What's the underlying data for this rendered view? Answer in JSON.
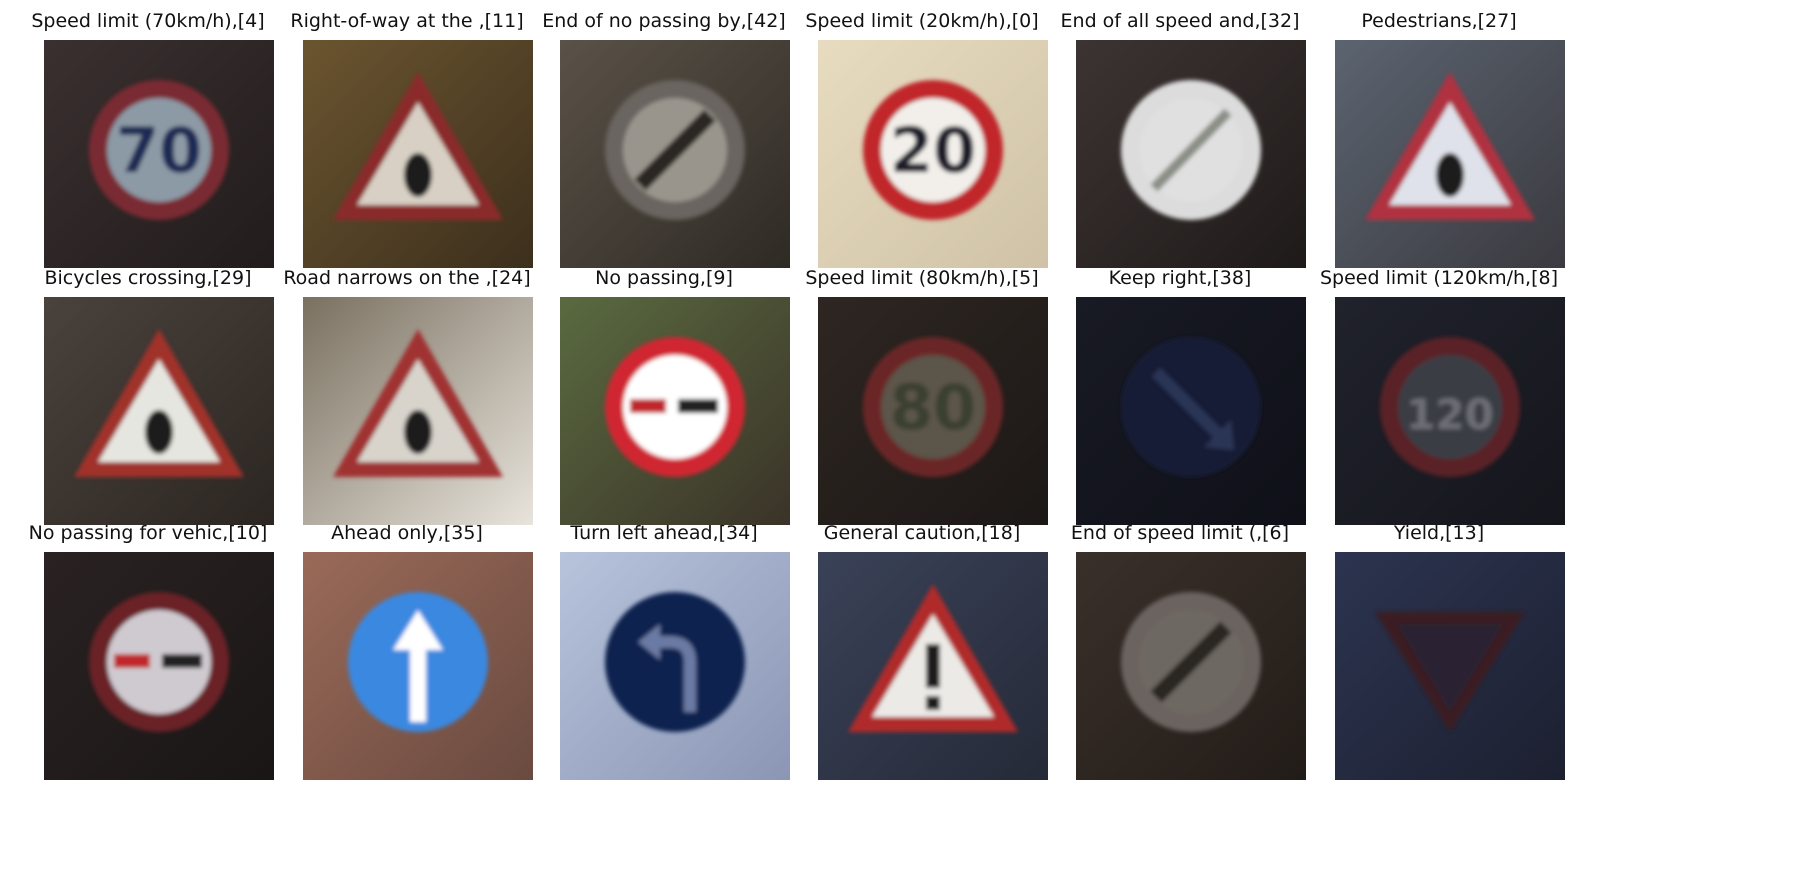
{
  "figure": {
    "cells": [
      {
        "title": "Speed limit (70km/h),[4]",
        "icon": "speed-limit-70-sign",
        "bg": [
          "#3a3030",
          "#221c1c"
        ],
        "sign": {
          "kind": "circle",
          "ring": "#7a2a30",
          "fill": "#8c9aa6",
          "sym": "70",
          "symColor": "#1f2a55"
        }
      },
      {
        "title": "Right-of-way at the ,[11]",
        "icon": "right-of-way-sign",
        "bg": [
          "#6b5530",
          "#3c2f1c"
        ],
        "sign": {
          "kind": "triangle",
          "ring": "#8a2a2a",
          "fill": "#d8d0c4",
          "sym": "dot"
        }
      },
      {
        "title": "End of no passing by,[42]",
        "icon": "end-of-no-passing-sign",
        "bg": [
          "#5a5248",
          "#2e2a24"
        ],
        "sign": {
          "kind": "circle",
          "ring": "#6a6560",
          "fill": "#9a958c",
          "sym": "slash-dark"
        }
      },
      {
        "title": "Speed limit (20km/h),[0]",
        "icon": "speed-limit-20-sign",
        "bg": [
          "#e8dcc0",
          "#cfc2a6"
        ],
        "sign": {
          "kind": "circle",
          "ring": "#c0282c",
          "fill": "#f2efea",
          "sym": "20",
          "symColor": "#1a1a2a"
        }
      },
      {
        "title": "End of all speed and,[32]",
        "icon": "end-of-all-limits-sign",
        "bg": [
          "#3c3432",
          "#1f1a1a"
        ],
        "sign": {
          "kind": "circle",
          "ring": "#dcdcdc",
          "fill": "#e0e0e0",
          "sym": "slash-gray"
        }
      },
      {
        "title": "Pedestrians,[27]",
        "icon": "pedestrians-sign",
        "bg": [
          "#5b6470",
          "#3b3a40"
        ],
        "sign": {
          "kind": "triangle",
          "ring": "#b03040",
          "fill": "#dfe2ea",
          "sym": "dot"
        }
      },
      {
        "title": "Bicycles crossing,[29]",
        "icon": "bicycles-crossing-sign",
        "bg": [
          "#4a423c",
          "#2c2622"
        ],
        "sign": {
          "kind": "triangle",
          "ring": "#a0302a",
          "fill": "#e6e6e0",
          "sym": "dot"
        }
      },
      {
        "title": "Road narrows on the ,[24]",
        "icon": "road-narrows-sign",
        "bg": [
          "#7a7060",
          "#e8e4dc"
        ],
        "sign": {
          "kind": "triangle",
          "ring": "#a03030",
          "fill": "#d8d4cc",
          "sym": "dot"
        }
      },
      {
        "title": "No passing,[9]",
        "icon": "no-passing-sign",
        "bg": [
          "#5a6a40",
          "#3a3328"
        ],
        "sign": {
          "kind": "circle",
          "ring": "#d02830",
          "fill": "#ffffff",
          "sym": "cars"
        }
      },
      {
        "title": "Speed limit (80km/h),[5]",
        "icon": "speed-limit-80-sign",
        "bg": [
          "#2e2622",
          "#1c1816"
        ],
        "sign": {
          "kind": "circle",
          "ring": "#6a2626",
          "fill": "#5c5448",
          "sym": "80",
          "symColor": "#3a4030"
        }
      },
      {
        "title": "Keep right,[38]",
        "icon": "keep-right-sign",
        "bg": [
          "#181a24",
          "#0f1018"
        ],
        "sign": {
          "kind": "circle",
          "ring": "#141c36",
          "fill": "#141c36",
          "sym": "arrow-down-right",
          "symColor": "#2a3456"
        }
      },
      {
        "title": "Speed limit (120km/h,[8]",
        "icon": "speed-limit-120-sign",
        "bg": [
          "#20222c",
          "#15161c"
        ],
        "sign": {
          "kind": "circle",
          "ring": "#5a2028",
          "fill": "#3a3c44",
          "sym": "120",
          "symColor": "#6c6e74"
        }
      },
      {
        "title": "No passing for vehic,[10]",
        "icon": "no-passing-trucks-sign",
        "bg": [
          "#2a2222",
          "#1a1616"
        ],
        "sign": {
          "kind": "circle",
          "ring": "#6a2428",
          "fill": "#cfcad0",
          "sym": "cars"
        }
      },
      {
        "title": "Ahead only,[35]",
        "icon": "ahead-only-sign",
        "bg": [
          "#9a6a58",
          "#6a4a40"
        ],
        "sign": {
          "kind": "circle",
          "ring": "#3a88e0",
          "fill": "#3a88e0",
          "sym": "arrow-up",
          "symColor": "#ffffff"
        }
      },
      {
        "title": "Turn left ahead,[34]",
        "icon": "turn-left-ahead-sign",
        "bg": [
          "#b8c4dc",
          "#8a96b4"
        ],
        "sign": {
          "kind": "circle",
          "ring": "#0c2050",
          "fill": "#0c2050",
          "sym": "arrow-left-turn",
          "symColor": "#6a7aa4"
        }
      },
      {
        "title": "General caution,[18]",
        "icon": "general-caution-sign",
        "bg": [
          "#3a4258",
          "#252a38"
        ],
        "sign": {
          "kind": "triangle",
          "ring": "#b02a2a",
          "fill": "#eceae6",
          "sym": "excl"
        }
      },
      {
        "title": "End of speed limit (,[6]",
        "icon": "end-of-speed-limit-sign",
        "bg": [
          "#3a302a",
          "#221c18"
        ],
        "sign": {
          "kind": "circle",
          "ring": "#6a6460",
          "fill": "#6e6862",
          "sym": "slash-dark"
        }
      },
      {
        "title": "Yield,[13]",
        "icon": "yield-sign",
        "bg": [
          "#2c3450",
          "#1c2030"
        ],
        "sign": {
          "kind": "triangle-down",
          "ring": "#3a1c24",
          "fill": "#2a2432",
          "sym": "none"
        }
      }
    ]
  }
}
